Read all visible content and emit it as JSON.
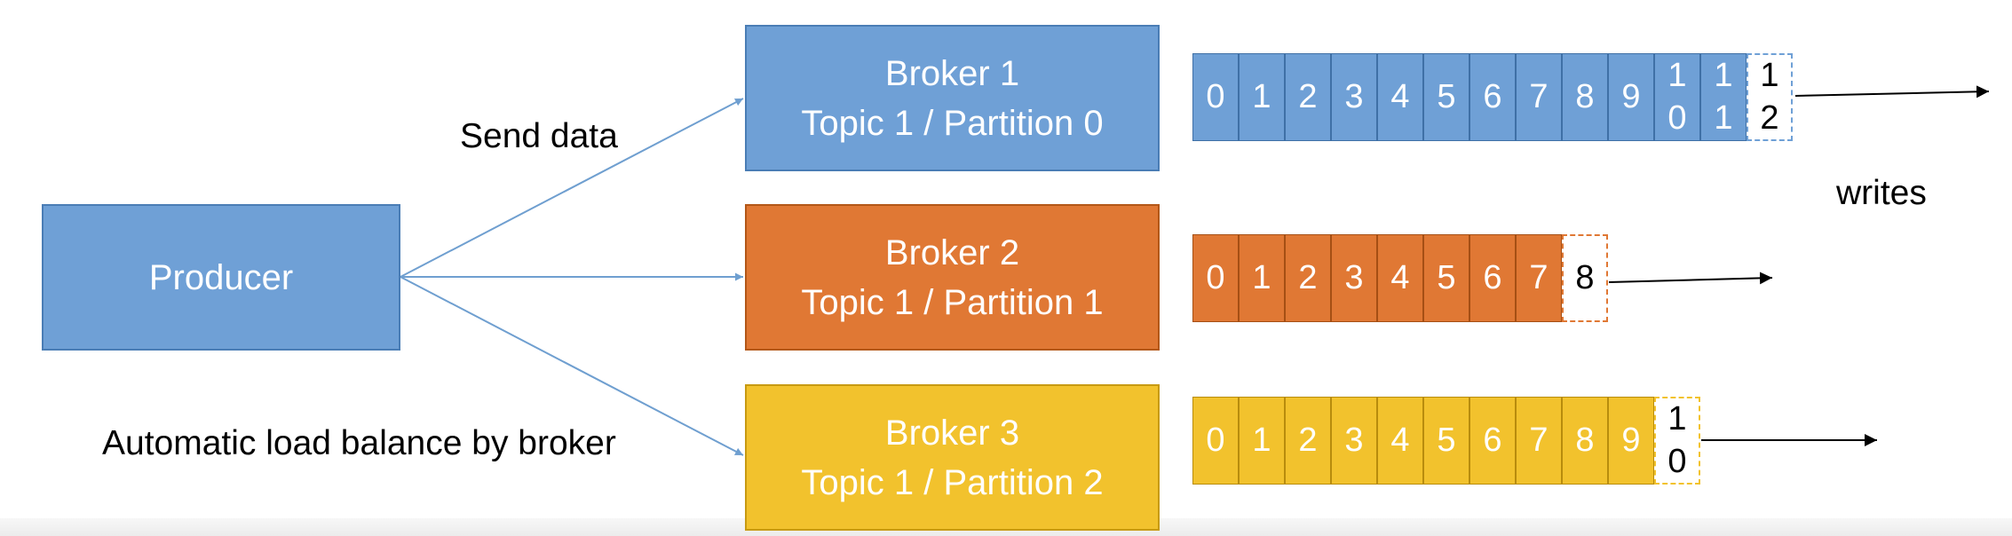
{
  "producer": {
    "label": "Producer"
  },
  "captions": {
    "send_data": "Send data",
    "load_balance": "Automatic load balance by broker",
    "writes": "writes"
  },
  "colors": {
    "partition0": "#6fa0d6",
    "partition1": "#e07834",
    "partition2": "#f2c22d"
  },
  "brokers": [
    {
      "broker": "Broker 1",
      "partition": "Topic 1 / Partition 0",
      "offsets": [
        [
          "0"
        ],
        [
          "1"
        ],
        [
          "2"
        ],
        [
          "3"
        ],
        [
          "4"
        ],
        [
          "5"
        ],
        [
          "6"
        ],
        [
          "7"
        ],
        [
          "8"
        ],
        [
          "9"
        ],
        [
          "1",
          "0"
        ],
        [
          "1",
          "1"
        ]
      ],
      "next_offset": [
        "1",
        "2"
      ]
    },
    {
      "broker": "Broker 2",
      "partition": "Topic 1 / Partition 1",
      "offsets": [
        [
          "0"
        ],
        [
          "1"
        ],
        [
          "2"
        ],
        [
          "3"
        ],
        [
          "4"
        ],
        [
          "5"
        ],
        [
          "6"
        ],
        [
          "7"
        ]
      ],
      "next_offset": [
        "8"
      ]
    },
    {
      "broker": "Broker 3",
      "partition": "Topic 1 / Partition 2",
      "offsets": [
        [
          "0"
        ],
        [
          "1"
        ],
        [
          "2"
        ],
        [
          "3"
        ],
        [
          "4"
        ],
        [
          "5"
        ],
        [
          "6"
        ],
        [
          "7"
        ],
        [
          "8"
        ],
        [
          "9"
        ]
      ],
      "next_offset": [
        "1",
        "0"
      ]
    }
  ]
}
